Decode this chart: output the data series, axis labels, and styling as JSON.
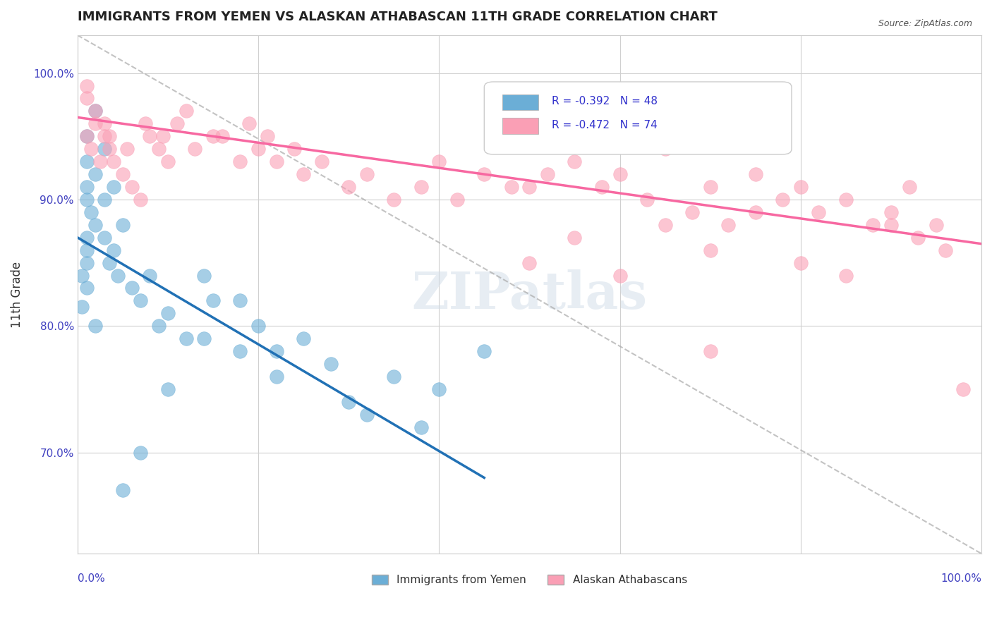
{
  "title": "IMMIGRANTS FROM YEMEN VS ALASKAN ATHABASCAN 11TH GRADE CORRELATION CHART",
  "source": "Source: ZipAtlas.com",
  "xlabel": "",
  "ylabel": "11th Grade",
  "xlim": [
    0.0,
    1.0
  ],
  "ylim": [
    0.62,
    1.03
  ],
  "yticks": [
    0.7,
    0.8,
    0.9,
    1.0
  ],
  "ytick_labels": [
    "70.0%",
    "80.0%",
    "90.0%",
    "100.0%"
  ],
  "xticks": [
    0.0,
    0.2,
    0.4,
    0.6,
    0.8,
    1.0
  ],
  "xtick_labels": [
    "0.0%",
    "",
    "",
    "",
    "",
    "100.0%"
  ],
  "watermark": "ZIPatlas",
  "legend_r_blue": "R = -0.392",
  "legend_n_blue": "N = 48",
  "legend_r_pink": "R = -0.472",
  "legend_n_pink": "N = 74",
  "legend_label_blue": "Immigrants from Yemen",
  "legend_label_pink": "Alaskan Athabascans",
  "blue_color": "#6baed6",
  "pink_color": "#fa9fb5",
  "blue_line_color": "#2171b5",
  "pink_line_color": "#f768a1",
  "blue_scatter_x": [
    0.02,
    0.01,
    0.03,
    0.01,
    0.02,
    0.01,
    0.01,
    0.015,
    0.02,
    0.01,
    0.01,
    0.01,
    0.005,
    0.01,
    0.005,
    0.02,
    0.03,
    0.04,
    0.05,
    0.03,
    0.04,
    0.035,
    0.045,
    0.06,
    0.08,
    0.07,
    0.09,
    0.1,
    0.12,
    0.15,
    0.14,
    0.18,
    0.2,
    0.22,
    0.25,
    0.28,
    0.32,
    0.35,
    0.22,
    0.18,
    0.14,
    0.38,
    0.3,
    0.1,
    0.07,
    0.05,
    0.4,
    0.45
  ],
  "blue_scatter_y": [
    0.97,
    0.95,
    0.94,
    0.93,
    0.92,
    0.91,
    0.9,
    0.89,
    0.88,
    0.87,
    0.86,
    0.85,
    0.84,
    0.83,
    0.815,
    0.8,
    0.9,
    0.91,
    0.88,
    0.87,
    0.86,
    0.85,
    0.84,
    0.83,
    0.84,
    0.82,
    0.8,
    0.81,
    0.79,
    0.82,
    0.79,
    0.78,
    0.8,
    0.76,
    0.79,
    0.77,
    0.73,
    0.76,
    0.78,
    0.82,
    0.84,
    0.72,
    0.74,
    0.75,
    0.7,
    0.67,
    0.75,
    0.78
  ],
  "pink_scatter_x": [
    0.01,
    0.01,
    0.02,
    0.03,
    0.03,
    0.035,
    0.04,
    0.05,
    0.06,
    0.07,
    0.08,
    0.09,
    0.1,
    0.12,
    0.15,
    0.18,
    0.2,
    0.22,
    0.25,
    0.3,
    0.35,
    0.4,
    0.45,
    0.5,
    0.55,
    0.6,
    0.65,
    0.7,
    0.75,
    0.8,
    0.85,
    0.9,
    0.92,
    0.95,
    0.02,
    0.01,
    0.015,
    0.025,
    0.035,
    0.055,
    0.075,
    0.095,
    0.11,
    0.13,
    0.16,
    0.19,
    0.21,
    0.24,
    0.27,
    0.32,
    0.38,
    0.42,
    0.48,
    0.52,
    0.58,
    0.63,
    0.68,
    0.72,
    0.78,
    0.82,
    0.88,
    0.93,
    0.96,
    0.98,
    0.5,
    0.6,
    0.7,
    0.8,
    0.85,
    0.9,
    0.75,
    0.65,
    0.55,
    0.7
  ],
  "pink_scatter_y": [
    0.99,
    0.98,
    0.97,
    0.96,
    0.95,
    0.94,
    0.93,
    0.92,
    0.91,
    0.9,
    0.95,
    0.94,
    0.93,
    0.97,
    0.95,
    0.93,
    0.94,
    0.93,
    0.92,
    0.91,
    0.9,
    0.93,
    0.92,
    0.91,
    0.93,
    0.92,
    0.94,
    0.91,
    0.92,
    0.91,
    0.9,
    0.89,
    0.91,
    0.88,
    0.96,
    0.95,
    0.94,
    0.93,
    0.95,
    0.94,
    0.96,
    0.95,
    0.96,
    0.94,
    0.95,
    0.96,
    0.95,
    0.94,
    0.93,
    0.92,
    0.91,
    0.9,
    0.91,
    0.92,
    0.91,
    0.9,
    0.89,
    0.88,
    0.9,
    0.89,
    0.88,
    0.87,
    0.86,
    0.75,
    0.85,
    0.84,
    0.86,
    0.85,
    0.84,
    0.88,
    0.89,
    0.88,
    0.87,
    0.78
  ],
  "blue_trend_x": [
    0.0,
    0.45
  ],
  "blue_trend_y": [
    0.87,
    0.68
  ],
  "pink_trend_x": [
    0.0,
    1.0
  ],
  "pink_trend_y": [
    0.965,
    0.865
  ],
  "diag_line_x": [
    0.0,
    1.0
  ],
  "diag_line_y": [
    1.03,
    0.62
  ],
  "background_color": "#ffffff",
  "grid_color": "#d0d0d0",
  "title_color": "#222222",
  "title_fontsize": 13,
  "axis_label_color": "#4040c0",
  "tick_color": "#4040c0"
}
